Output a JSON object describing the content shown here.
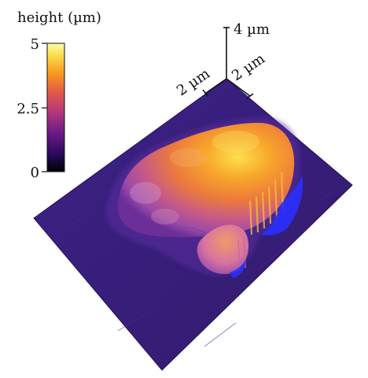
{
  "colorbar": {
    "title": "height (µm)",
    "ticks": [
      {
        "value": 5,
        "label": "5"
      },
      {
        "value": 2.5,
        "label": "2.5"
      },
      {
        "value": 0,
        "label": "0"
      }
    ],
    "range": [
      0,
      5
    ],
    "colormap": [
      "#000004",
      "#2a0a5e",
      "#6a1a86",
      "#b2377e",
      "#e35a46",
      "#f8961c",
      "#fcd94a",
      "#fcffa4"
    ]
  },
  "scale_bars": {
    "z_label": "4 µm",
    "x_label": "2 µm",
    "y_label": "2 µm"
  },
  "surface": {
    "substrate_color": "#3a1f7a",
    "edge_color": "#2a0f62",
    "shadow_color": "#2a30ff"
  }
}
